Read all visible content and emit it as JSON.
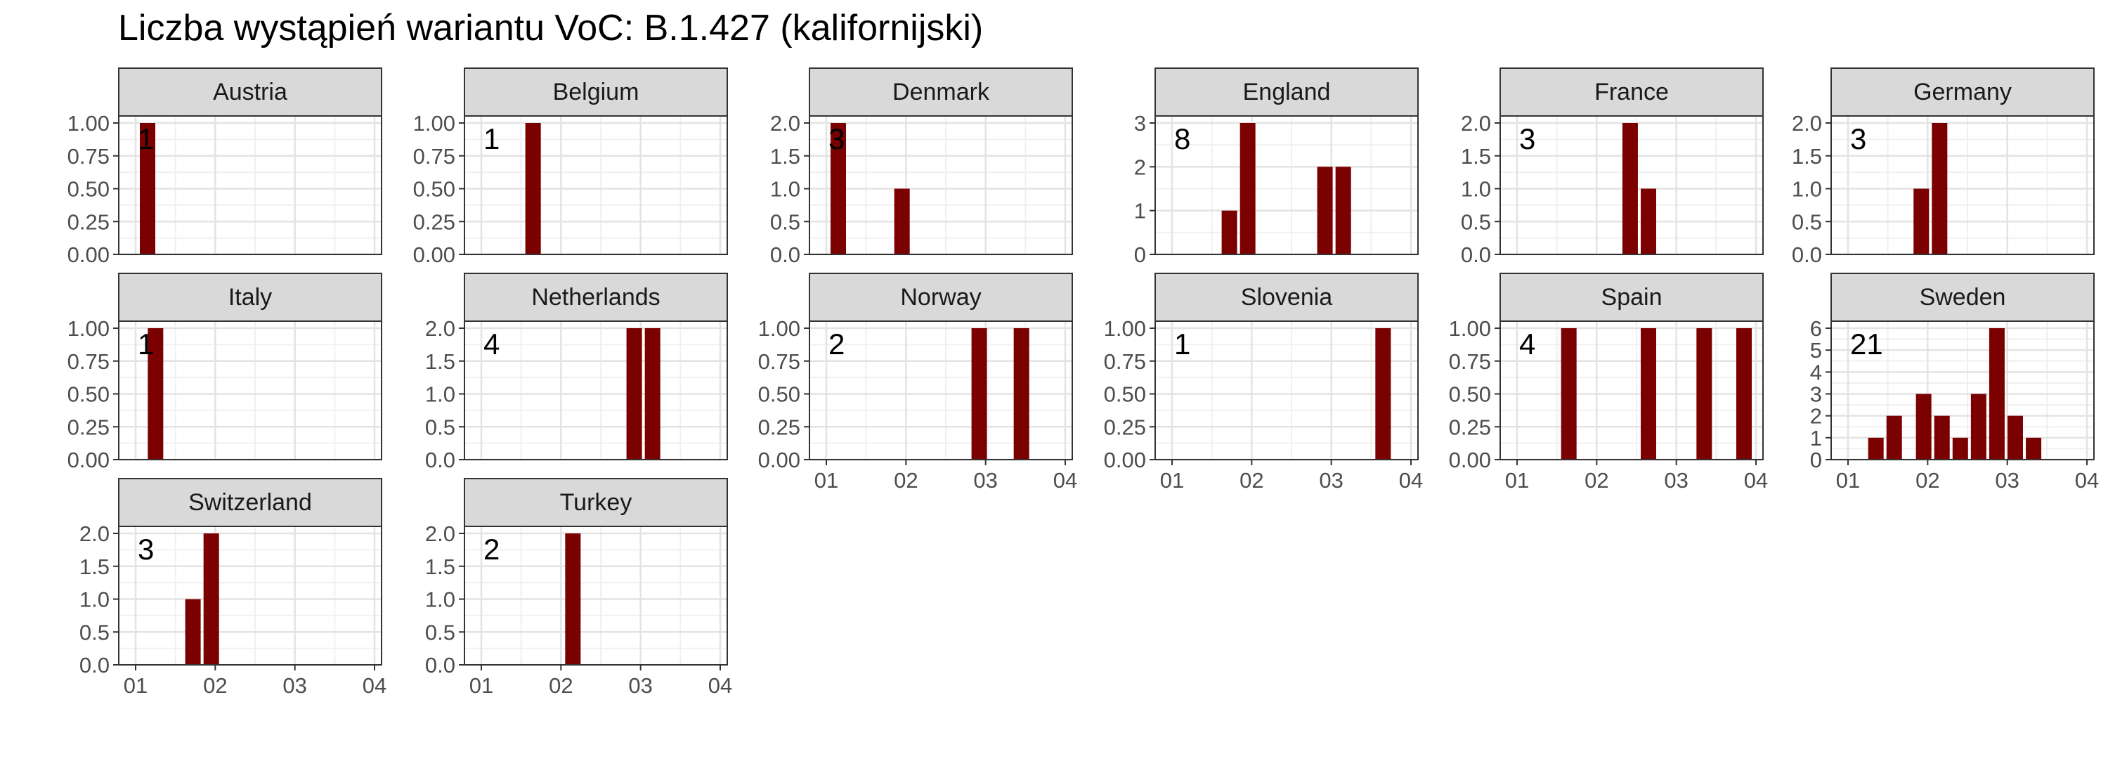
{
  "chart_data": {
    "type": "bar",
    "title": "Liczba wystąpień wariantu VoC: B.1.427 (kalifornijski)",
    "xlabel": "",
    "ylabel": "",
    "x_tick_labels": [
      "01",
      "02",
      "03",
      "04"
    ],
    "grid": true,
    "bar_color": "#7b0000",
    "strip_color": "#d9d9d9",
    "panels": [
      {
        "name": "Austria",
        "total": "1",
        "ylim": [
          0,
          1
        ],
        "yticks": [
          "0.00",
          "0.25",
          "0.50",
          "0.75",
          "1.00"
        ],
        "bars": [
          {
            "x": 0.15,
            "value": 1
          }
        ]
      },
      {
        "name": "Belgium",
        "total": "1",
        "ylim": [
          0,
          1
        ],
        "yticks": [
          "0.00",
          "0.25",
          "0.50",
          "0.75",
          "1.00"
        ],
        "bars": [
          {
            "x": 0.65,
            "value": 1
          }
        ]
      },
      {
        "name": "Denmark",
        "total": "3",
        "ylim": [
          0,
          2
        ],
        "yticks": [
          "0.0",
          "0.5",
          "1.0",
          "1.5",
          "2.0"
        ],
        "bars": [
          {
            "x": 0.15,
            "value": 2
          },
          {
            "x": 0.95,
            "value": 1
          }
        ]
      },
      {
        "name": "England",
        "total": "8",
        "ylim": [
          0,
          3
        ],
        "yticks": [
          "0",
          "1",
          "2",
          "3"
        ],
        "bars": [
          {
            "x": 0.72,
            "value": 1
          },
          {
            "x": 0.95,
            "value": 3
          },
          {
            "x": 1.92,
            "value": 2
          },
          {
            "x": 2.15,
            "value": 2
          }
        ]
      },
      {
        "name": "France",
        "total": "3",
        "ylim": [
          0,
          2
        ],
        "yticks": [
          "0.0",
          "0.5",
          "1.0",
          "1.5",
          "2.0"
        ],
        "bars": [
          {
            "x": 1.42,
            "value": 2
          },
          {
            "x": 1.65,
            "value": 1
          }
        ]
      },
      {
        "name": "Germany",
        "total": "3",
        "ylim": [
          0,
          2
        ],
        "yticks": [
          "0.0",
          "0.5",
          "1.0",
          "1.5",
          "2.0"
        ],
        "bars": [
          {
            "x": 0.92,
            "value": 1
          },
          {
            "x": 1.15,
            "value": 2
          }
        ]
      },
      {
        "name": "Italy",
        "total": "1",
        "ylim": [
          0,
          1
        ],
        "yticks": [
          "0.00",
          "0.25",
          "0.50",
          "0.75",
          "1.00"
        ],
        "bars": [
          {
            "x": 0.25,
            "value": 1
          }
        ]
      },
      {
        "name": "Netherlands",
        "total": "4",
        "ylim": [
          0,
          2
        ],
        "yticks": [
          "0.0",
          "0.5",
          "1.0",
          "1.5",
          "2.0"
        ],
        "bars": [
          {
            "x": 1.92,
            "value": 2
          },
          {
            "x": 2.15,
            "value": 2
          }
        ]
      },
      {
        "name": "Norway",
        "total": "2",
        "ylim": [
          0,
          1
        ],
        "yticks": [
          "0.00",
          "0.25",
          "0.50",
          "0.75",
          "1.00"
        ],
        "bars": [
          {
            "x": 1.92,
            "value": 1
          },
          {
            "x": 2.45,
            "value": 1
          }
        ]
      },
      {
        "name": "Slovenia",
        "total": "1",
        "ylim": [
          0,
          1
        ],
        "yticks": [
          "0.00",
          "0.25",
          "0.50",
          "0.75",
          "1.00"
        ],
        "bars": [
          {
            "x": 2.65,
            "value": 1
          }
        ]
      },
      {
        "name": "Spain",
        "total": "4",
        "ylim": [
          0,
          1
        ],
        "yticks": [
          "0.00",
          "0.25",
          "0.50",
          "0.75",
          "1.00"
        ],
        "bars": [
          {
            "x": 0.65,
            "value": 1
          },
          {
            "x": 1.65,
            "value": 1
          },
          {
            "x": 2.35,
            "value": 1
          },
          {
            "x": 2.85,
            "value": 1
          }
        ]
      },
      {
        "name": "Sweden",
        "total": "21",
        "ylim": [
          0,
          6
        ],
        "yticks": [
          "0",
          "1",
          "2",
          "3",
          "4",
          "5",
          "6"
        ],
        "bars": [
          {
            "x": 0.35,
            "value": 1
          },
          {
            "x": 0.58,
            "value": 2
          },
          {
            "x": 0.95,
            "value": 3
          },
          {
            "x": 1.18,
            "value": 2
          },
          {
            "x": 1.41,
            "value": 1
          },
          {
            "x": 1.64,
            "value": 3
          },
          {
            "x": 1.87,
            "value": 6
          },
          {
            "x": 2.1,
            "value": 2
          },
          {
            "x": 2.33,
            "value": 1
          }
        ]
      },
      {
        "name": "Switzerland",
        "total": "3",
        "ylim": [
          0,
          2
        ],
        "yticks": [
          "0.0",
          "0.5",
          "1.0",
          "1.5",
          "2.0"
        ],
        "bars": [
          {
            "x": 0.72,
            "value": 1
          },
          {
            "x": 0.95,
            "value": 2
          }
        ]
      },
      {
        "name": "Turkey",
        "total": "2",
        "ylim": [
          0,
          2
        ],
        "yticks": [
          "0.0",
          "0.5",
          "1.0",
          "1.5",
          "2.0"
        ],
        "bars": [
          {
            "x": 1.15,
            "value": 2
          }
        ]
      }
    ]
  }
}
